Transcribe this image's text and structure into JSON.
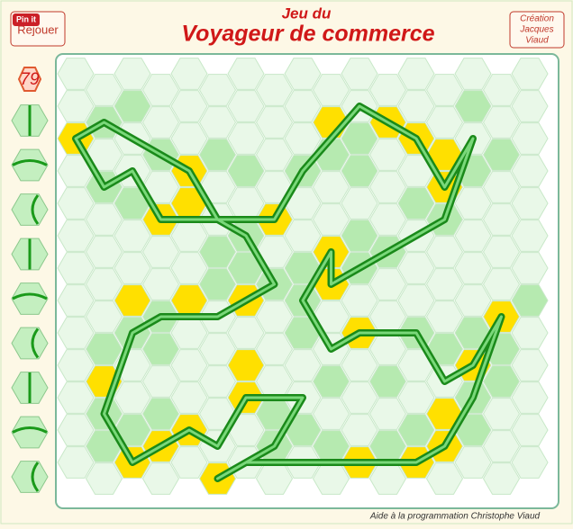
{
  "header": {
    "pin": "Pin it",
    "replay": "Rejouer",
    "title_small": "Jeu du",
    "title": "Voyageur de commerce",
    "credit": [
      "Création",
      "Jacques",
      "Viaud"
    ]
  },
  "counter": "79",
  "footer": "Aide à la programmation Christophe Viaud"
}
